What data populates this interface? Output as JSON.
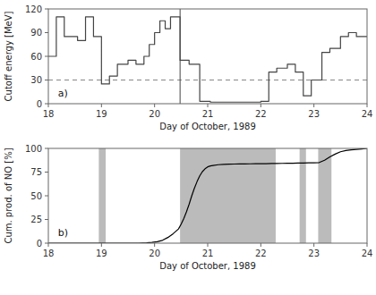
{
  "chart_data": [
    {
      "type": "step",
      "xlabel": "Day of October, 1989",
      "ylabel": "Cutoff energy [MeV]",
      "annotation": "a)",
      "xlim": [
        18,
        24
      ],
      "ylim": [
        0,
        120
      ],
      "xticks": [
        18,
        19,
        20,
        21,
        22,
        23,
        24
      ],
      "yticks": [
        0,
        30,
        60,
        90,
        120
      ],
      "color": "#444444",
      "x": [
        18.0,
        18.15,
        18.3,
        18.55,
        18.7,
        18.85,
        19.0,
        19.15,
        19.3,
        19.5,
        19.65,
        19.8,
        19.9,
        20.0,
        20.1,
        20.2,
        20.3,
        20.48,
        20.48,
        20.65,
        20.85,
        21.0,
        21.05,
        21.9,
        22.0,
        22.15,
        22.3,
        22.5,
        22.65,
        22.65,
        22.8,
        22.95,
        23.0,
        23.15,
        23.3,
        23.5,
        23.65,
        23.8,
        24.0
      ],
      "values": [
        60,
        110,
        85,
        80,
        110,
        85,
        25,
        35,
        50,
        55,
        50,
        60,
        75,
        90,
        105,
        95,
        110,
        55,
        55,
        50,
        3,
        3,
        2,
        2,
        3,
        40,
        45,
        50,
        40,
        40,
        10,
        30,
        30,
        65,
        70,
        85,
        90,
        85,
        85
      ],
      "hline": {
        "value": 30,
        "color": "#888888",
        "line_style": "dashed"
      },
      "vline": {
        "value": 20.48,
        "color": "#444444"
      }
    },
    {
      "type": "line",
      "xlabel": "Day of October, 1989",
      "ylabel": "Cum. prod. of NO [%]",
      "annotation": "b)",
      "xlim": [
        18,
        24
      ],
      "ylim": [
        0,
        100
      ],
      "xticks": [
        18,
        19,
        20,
        21,
        22,
        23,
        24
      ],
      "yticks": [
        0,
        25,
        50,
        75,
        100
      ],
      "color": "black",
      "span_color": "#bbbbbb",
      "spans": [
        {
          "x0": 18.95,
          "x1": 19.08
        },
        {
          "x0": 20.48,
          "x1": 22.28
        },
        {
          "x0": 22.73,
          "x1": 22.85
        },
        {
          "x0": 23.08,
          "x1": 23.33
        }
      ],
      "x": [
        18.0,
        19.0,
        19.5,
        19.7,
        19.85,
        19.95,
        20.05,
        20.15,
        20.25,
        20.35,
        20.45,
        20.5,
        20.55,
        20.6,
        20.65,
        20.7,
        20.75,
        20.8,
        20.85,
        20.9,
        20.95,
        21.0,
        21.05,
        21.1,
        21.2,
        21.3,
        21.4,
        21.5,
        21.6,
        21.7,
        21.8,
        21.9,
        22.0,
        22.1,
        22.2,
        22.3,
        22.4,
        22.5,
        22.6,
        22.7,
        22.8,
        22.9,
        23.0,
        23.1,
        23.2,
        23.3,
        23.4,
        23.5,
        23.6,
        23.7,
        23.8,
        23.9,
        24.0
      ],
      "values": [
        0,
        0,
        0,
        0,
        0.3,
        0.8,
        1.5,
        3.0,
        6.0,
        10.0,
        15.0,
        20.0,
        26.0,
        33.0,
        41.0,
        50.0,
        58.0,
        65.0,
        71.0,
        75.5,
        78.5,
        80.5,
        81.5,
        82.0,
        82.8,
        83.2,
        83.4,
        83.5,
        83.6,
        83.7,
        83.75,
        83.8,
        83.85,
        83.9,
        84.0,
        84.1,
        84.2,
        84.3,
        84.4,
        84.5,
        84.6,
        84.7,
        84.85,
        85.1,
        87.5,
        91.0,
        94.0,
        96.5,
        97.8,
        98.5,
        99.0,
        99.5,
        100.0
      ]
    }
  ]
}
